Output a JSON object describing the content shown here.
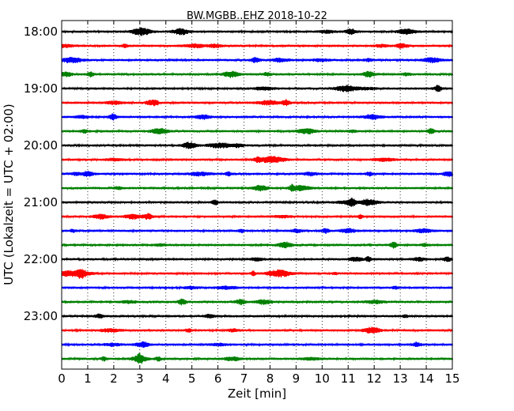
{
  "chart_data": {
    "type": "line",
    "title": "BW.MGBB..EHZ 2018-10-22",
    "xlabel": "Zeit  [min]",
    "ylabel": "UTC (Lokalzeit = UTC + 02:00)",
    "xlim": [
      0,
      15
    ],
    "x_ticks": [
      0,
      1,
      2,
      3,
      4,
      5,
      6,
      7,
      8,
      9,
      10,
      11,
      12,
      13,
      14,
      15
    ],
    "y_ticks": [
      "18:00",
      "19:00",
      "20:00",
      "21:00",
      "22:00",
      "23:00"
    ],
    "grid": {
      "vertical": "dotted",
      "horizontal": false
    },
    "trace_colors": [
      "#000000",
      "#ff0000",
      "#0000ff",
      "#008000"
    ],
    "traces": [
      {
        "start": "18:00",
        "color": "#000000"
      },
      {
        "start": "18:15",
        "color": "#ff0000"
      },
      {
        "start": "18:30",
        "color": "#0000ff"
      },
      {
        "start": "18:45",
        "color": "#008000"
      },
      {
        "start": "19:00",
        "color": "#000000"
      },
      {
        "start": "19:15",
        "color": "#ff0000"
      },
      {
        "start": "19:30",
        "color": "#0000ff"
      },
      {
        "start": "19:45",
        "color": "#008000"
      },
      {
        "start": "20:00",
        "color": "#000000"
      },
      {
        "start": "20:15",
        "color": "#ff0000"
      },
      {
        "start": "20:30",
        "color": "#0000ff"
      },
      {
        "start": "20:45",
        "color": "#008000"
      },
      {
        "start": "21:00",
        "color": "#000000"
      },
      {
        "start": "21:15",
        "color": "#ff0000"
      },
      {
        "start": "21:30",
        "color": "#0000ff"
      },
      {
        "start": "21:45",
        "color": "#008000"
      },
      {
        "start": "22:00",
        "color": "#000000"
      },
      {
        "start": "22:15",
        "color": "#ff0000"
      },
      {
        "start": "22:30",
        "color": "#0000ff"
      },
      {
        "start": "22:45",
        "color": "#008000"
      },
      {
        "start": "23:00",
        "color": "#000000"
      },
      {
        "start": "23:15",
        "color": "#ff0000"
      },
      {
        "start": "23:30",
        "color": "#0000ff"
      },
      {
        "start": "23:45",
        "color": "#008000"
      }
    ]
  }
}
